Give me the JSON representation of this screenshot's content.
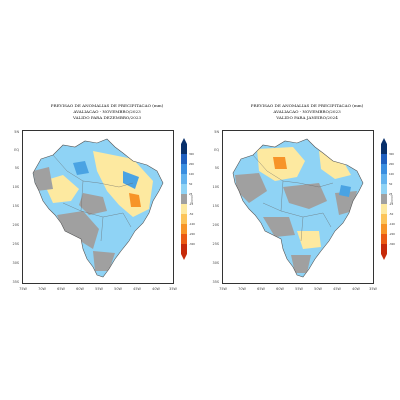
{
  "panels": [
    {
      "title1": "PREVISAO DE ANOMALIAS DE PRECIPITACAO (mm)",
      "title2": "AVALIACAO - NOVEMBRO/2023",
      "title3": "VALIDO PARA DEZEMBRO/2023"
    },
    {
      "title1": "PREVISAO DE ANOMALIAS DE PRECIPITACAO (mm)",
      "title2": "AVALIACAO - NOVEMBRO/2023",
      "title3": "VALIDO PARA JANEIRO/2024"
    }
  ],
  "y_ticks": [
    "5N",
    "EQ",
    "5S",
    "10S",
    "15S",
    "20S",
    "25S",
    "30S",
    "35S"
  ],
  "x_ticks": [
    "75W",
    "70W",
    "65W",
    "60W",
    "55W",
    "50W",
    "45W",
    "40W",
    "35W"
  ],
  "colorbar": {
    "labels": [
      "300",
      "200",
      "100",
      "50",
      "25",
      "-25",
      "-50",
      "-100",
      "-200",
      "-300"
    ],
    "unit": "(mm)",
    "colors": [
      "#08306b",
      "#1f5fbf",
      "#3a8ee0",
      "#63b3ee",
      "#8fd3f5",
      "#a0a0a0",
      "#fde9a0",
      "#fcc45a",
      "#f79428",
      "#ea5a14",
      "#c62a0a"
    ]
  },
  "map_colors": {
    "positive": "#8fd3f5",
    "positive_strong": "#4aa3e3",
    "neutral": "#a0a0a0",
    "negative": "#fde9a0",
    "negative_strong": "#f79428",
    "ocean": "#ffffff",
    "border": "#555555"
  }
}
